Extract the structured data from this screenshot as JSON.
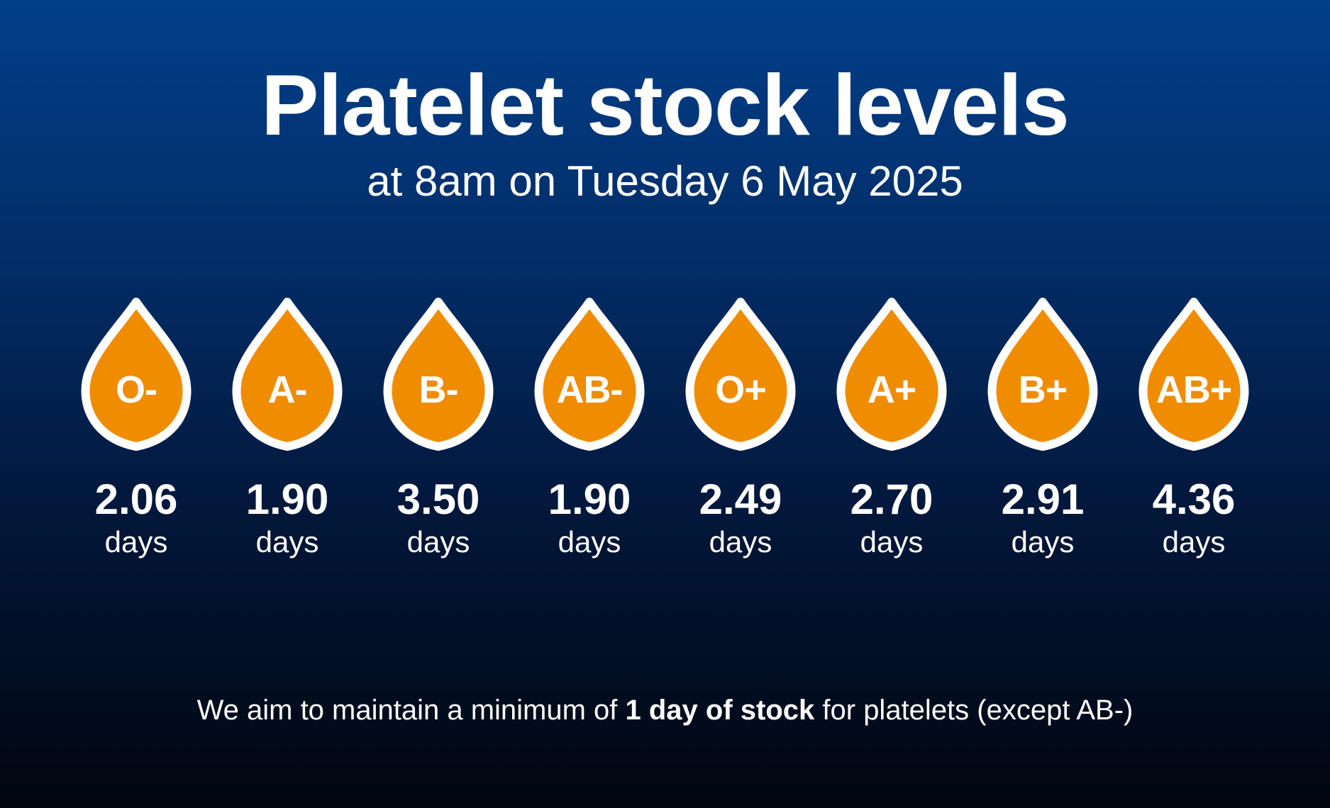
{
  "title": "Platelet stock levels",
  "subtitle": "at 8am on Tuesday 6 May 2025",
  "colors": {
    "background_top": "#023f8a",
    "background_bottom": "#01060f",
    "drop_fill": "#f08c00",
    "drop_outline": "#ffffff",
    "text": "#ffffff"
  },
  "drop_icon": "blood-drop-icon",
  "stock": [
    {
      "group": "O-",
      "value": "2.06",
      "unit": "days"
    },
    {
      "group": "A-",
      "value": "1.90",
      "unit": "days"
    },
    {
      "group": "B-",
      "value": "3.50",
      "unit": "days"
    },
    {
      "group": "AB-",
      "value": "1.90",
      "unit": "days"
    },
    {
      "group": "O+",
      "value": "2.49",
      "unit": "days"
    },
    {
      "group": "A+",
      "value": "2.70",
      "unit": "days"
    },
    {
      "group": "B+",
      "value": "2.91",
      "unit": "days"
    },
    {
      "group": "AB+",
      "value": "4.36",
      "unit": "days"
    }
  ],
  "footnote": {
    "before": "We aim to maintain a minimum of ",
    "bold": "1 day of stock",
    "after": " for platelets (except AB-)"
  }
}
